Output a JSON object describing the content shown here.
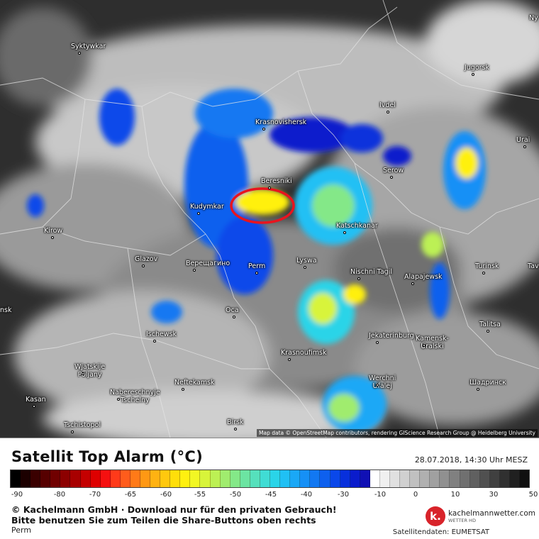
{
  "map": {
    "attribution": "Map data © OpenStreetMap contributors, rendering GIScience Research Group @ Heidelberg University",
    "cities": [
      {
        "name": "Syktywkar"
      },
      {
        "name": "Jugorsk"
      },
      {
        "name": "Ivdel"
      },
      {
        "name": "Krasnovishersk"
      },
      {
        "name": "Urai"
      },
      {
        "name": "Beresniki"
      },
      {
        "name": "Serow"
      },
      {
        "name": "Kudymkar"
      },
      {
        "name": "Katschkanar"
      },
      {
        "name": "Kirow"
      },
      {
        "name": "Glazov"
      },
      {
        "name": "Верещагино"
      },
      {
        "name": "Perm"
      },
      {
        "name": "Lyswa"
      },
      {
        "name": "Nischni Tagil"
      },
      {
        "name": "Alapajewsk"
      },
      {
        "name": "Turinsk"
      },
      {
        "name": "Ocа"
      },
      {
        "name": "Ischewsk"
      },
      {
        "name": "Krasnoufimsk"
      },
      {
        "name": "Jekaterinburg"
      },
      {
        "name": "Talitsa"
      },
      {
        "name": "Wjatskije Poljany"
      },
      {
        "name": "Neftekamsk"
      },
      {
        "name": "Kamensk-Uralski"
      },
      {
        "name": "Nabereschnyje Tschelny"
      },
      {
        "name": "Werchni Ufalej"
      },
      {
        "name": "Шадринск"
      },
      {
        "name": "Kasan"
      },
      {
        "name": "Tschistopol"
      },
      {
        "name": "Birsk"
      },
      {
        "name": "Ny"
      },
      {
        "name": "Tav"
      },
      {
        "name": "nsk"
      }
    ]
  },
  "legend": {
    "title": "Satellit Top Alarm (°C)",
    "datetime": "28.07.2018, 14:30 Uhr MESZ",
    "colors": [
      "#000000",
      "#1c0000",
      "#3a0000",
      "#560000",
      "#700000",
      "#8c0000",
      "#a80000",
      "#c40000",
      "#de0000",
      "#f51010",
      "#ff3a1a",
      "#ff5c1c",
      "#ff7a18",
      "#ff9814",
      "#ffb212",
      "#ffc80e",
      "#ffde0a",
      "#fff010",
      "#f2f724",
      "#d8f43a",
      "#bcf054",
      "#a0ec6e",
      "#84e888",
      "#6ce4a2",
      "#56e0bc",
      "#40dcd4",
      "#2ad4e8",
      "#20c0f4",
      "#1aa8f6",
      "#1690f6",
      "#1278f2",
      "#0e60ee",
      "#0a48ea",
      "#0830dc",
      "#0a1ccc",
      "#1010b4",
      "#ffffff",
      "#f0f0f0",
      "#e0e0e0",
      "#d0d0d0",
      "#c0c0c0",
      "#b0b0b0",
      "#a0a0a0",
      "#909090",
      "#808080",
      "#707070",
      "#606060",
      "#505050",
      "#404040",
      "#303030",
      "#202020",
      "#101010"
    ],
    "ticks": [
      "-90",
      "-80",
      "-70",
      "-65",
      "-60",
      "-55",
      "-50",
      "-45",
      "-40",
      "-30",
      "-10",
      "0",
      "10",
      "30",
      "50"
    ],
    "copyright": "© Kachelmann GmbH · Download nur für den privaten Gebrauch!",
    "share_note": "Bitte benutzen Sie zum Teilen die Share-Buttons oben rechts",
    "region": "Perm",
    "logo": {
      "mark": "k.",
      "name": "kachelmannwetter.com",
      "sub": "WETTER HD"
    },
    "data_source": "Satellitendaten: EUMETSAT"
  }
}
